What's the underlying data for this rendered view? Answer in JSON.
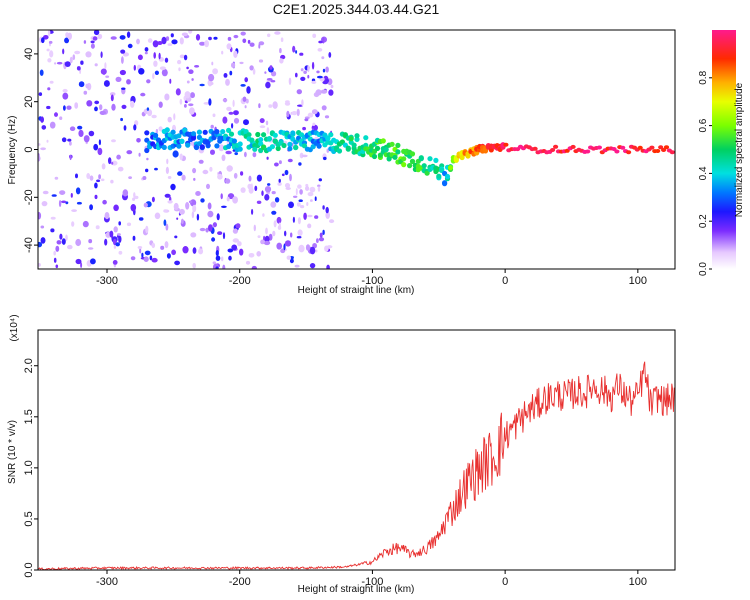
{
  "title": "C2E1.2025.344.03.44.G21",
  "chart_data": [
    {
      "type": "heatmap",
      "title": "C2E1.2025.344.03.44.G21",
      "xlabel": "Height of straight line (km)",
      "ylabel": "Frequency (Hz)",
      "xlim": [
        -352,
        128
      ],
      "ylim": [
        -50,
        50
      ],
      "xticks": [
        -300,
        -200,
        -100,
        0,
        100
      ],
      "yticks": [
        -40,
        -20,
        0,
        20,
        40
      ],
      "colorbar": {
        "label": "Normalized spectral amplitude",
        "range": [
          0.0,
          1.0
        ],
        "ticks": [
          0.0,
          0.2,
          0.4,
          0.6,
          0.8
        ]
      },
      "ridge": {
        "x": [
          -270,
          -250,
          -230,
          -200,
          -180,
          -160,
          -140,
          -120,
          -100,
          -80,
          -60,
          -50,
          -45,
          -40,
          -30,
          -20,
          -10,
          0,
          20,
          60,
          100,
          128
        ],
        "y": [
          3,
          5,
          4,
          4,
          3,
          4,
          3,
          3,
          1,
          -2,
          -6,
          -9,
          -11,
          -4,
          -2,
          0,
          1,
          1,
          0,
          0,
          0,
          0
        ],
        "amplitude": [
          0.3,
          0.35,
          0.3,
          0.4,
          0.45,
          0.4,
          0.35,
          0.45,
          0.5,
          0.55,
          0.5,
          0.45,
          0.35,
          0.6,
          0.8,
          0.85,
          0.9,
          0.95,
          0.95,
          0.95,
          0.95,
          0.95
        ]
      },
      "noise_until_x": -130,
      "note": "Strong carrier near 0 Hz above about 0 km; broadband low-amplitude noise below about -130 km."
    },
    {
      "type": "line",
      "xlabel": "Height of straight line (km)",
      "ylabel": "SNR (10 * v/v)",
      "y_multiplier": "(x10⁴)",
      "xlim": [
        -352,
        128
      ],
      "ylim": [
        0,
        2.35
      ],
      "xticks": [
        -300,
        -200,
        -100,
        0,
        100
      ],
      "yticks": [
        0.0,
        0.5,
        1.0,
        1.5,
        2.0
      ],
      "ytick_labels": [
        "0.0",
        "0.5",
        "1.0",
        "1.5",
        "2.0"
      ],
      "series": [
        {
          "name": "SNR",
          "color": "#e8302f",
          "x": [
            -352,
            -300,
            -250,
            -200,
            -150,
            -120,
            -100,
            -90,
            -80,
            -70,
            -60,
            -50,
            -45,
            -40,
            -35,
            -30,
            -25,
            -20,
            -15,
            -10,
            -5,
            0,
            5,
            10,
            15,
            20,
            25,
            30,
            35,
            40,
            45,
            50,
            55,
            60,
            65,
            70,
            75,
            80,
            85,
            90,
            95,
            100,
            105,
            110,
            115,
            120,
            128
          ],
          "y": [
            0.01,
            0.02,
            0.02,
            0.02,
            0.02,
            0.03,
            0.08,
            0.18,
            0.22,
            0.15,
            0.2,
            0.32,
            0.48,
            0.58,
            0.7,
            0.82,
            0.9,
            0.98,
            1.05,
            1.1,
            1.2,
            1.3,
            1.38,
            1.45,
            1.52,
            1.58,
            1.62,
            1.68,
            1.7,
            1.72,
            1.7,
            1.72,
            1.75,
            1.72,
            1.8,
            1.78,
            1.75,
            1.7,
            1.8,
            1.72,
            1.65,
            1.7,
            1.95,
            1.6,
            1.7,
            1.65,
            1.7
          ]
        }
      ]
    }
  ]
}
